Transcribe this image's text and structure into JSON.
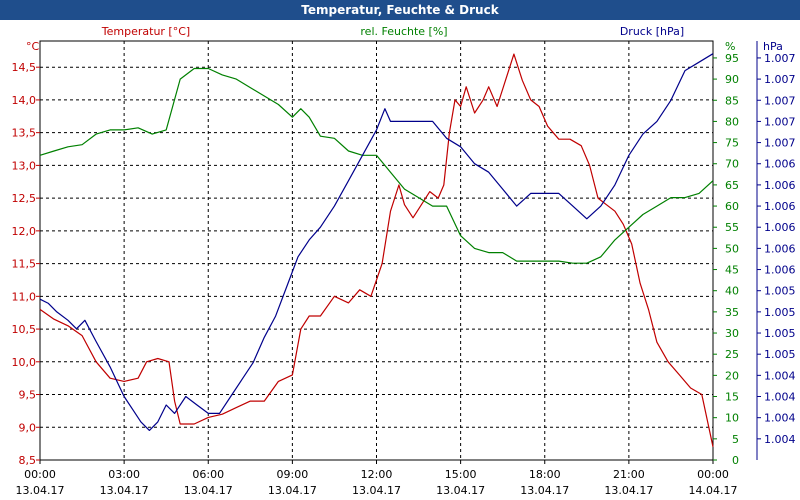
{
  "window": {
    "title": "Temperatur, Feuchte & Druck"
  },
  "colors": {
    "temperature": "#c00000",
    "humidity": "#008000",
    "pressure": "#00008b",
    "titlebar": "#1f4e8c",
    "grid": "#000000"
  },
  "chart_data": {
    "type": "line",
    "title": "Temperatur, Feuchte & Druck",
    "x": {
      "tick_labels": [
        {
          "time": "00:00",
          "date": "13.04.17"
        },
        {
          "time": "03:00",
          "date": "13.04.17"
        },
        {
          "time": "06:00",
          "date": "13.04.17"
        },
        {
          "time": "09:00",
          "date": "13.04.17"
        },
        {
          "time": "12:00",
          "date": "13.04.17"
        },
        {
          "time": "15:00",
          "date": "13.04.17"
        },
        {
          "time": "18:00",
          "date": "13.04.17"
        },
        {
          "time": "21:00",
          "date": "13.04.17"
        },
        {
          "time": "00:00",
          "date": "14.04.17"
        }
      ],
      "range_hours": [
        0,
        24
      ]
    },
    "axes": {
      "temperature": {
        "label": "Temperatur [°C]",
        "unit": "°C",
        "range": [
          8.5,
          14.9
        ],
        "ticks": [
          "8,5",
          "9,0",
          "9,5",
          "10,0",
          "10,5",
          "11,0",
          "11,5",
          "12,0",
          "12,5",
          "13,0",
          "13,5",
          "14,0",
          "14,5"
        ],
        "tick_values": [
          8.5,
          9.0,
          9.5,
          10.0,
          10.5,
          11.0,
          11.5,
          12.0,
          12.5,
          13.0,
          13.5,
          14.0,
          14.5
        ]
      },
      "humidity": {
        "label": "rel. Feuchte [%]",
        "unit": "%",
        "range": [
          0,
          99
        ],
        "ticks": [
          "0",
          "5",
          "10",
          "15",
          "20",
          "25",
          "30",
          "35",
          "40",
          "45",
          "50",
          "55",
          "60",
          "65",
          "70",
          "75",
          "80",
          "85",
          "90",
          "95"
        ],
        "tick_values": [
          0,
          5,
          10,
          15,
          20,
          25,
          30,
          35,
          40,
          45,
          50,
          55,
          60,
          65,
          70,
          75,
          80,
          85,
          90,
          95
        ]
      },
      "pressure": {
        "label": "Druck [hPa]",
        "unit": "hPa",
        "range": [
          0,
          99
        ],
        "ticks": [
          "1.004",
          "1.004",
          "1.004",
          "1.004",
          "1.005",
          "1.005",
          "1.005",
          "1.005",
          "1.006",
          "1.006",
          "1.006",
          "1.006",
          "1.006",
          "1.006",
          "1.007",
          "1.007",
          "1.007",
          "1.007",
          "1.007"
        ],
        "tick_values": [
          5,
          10,
          15,
          20,
          25,
          30,
          35,
          40,
          45,
          50,
          55,
          60,
          65,
          70,
          75,
          80,
          85,
          90,
          95
        ]
      }
    },
    "series": [
      {
        "name": "Temperatur",
        "axis": "temperature",
        "color": "#c00000",
        "points": [
          [
            0,
            10.8
          ],
          [
            0.5,
            10.65
          ],
          [
            1,
            10.55
          ],
          [
            1.5,
            10.4
          ],
          [
            2,
            10.0
          ],
          [
            2.5,
            9.75
          ],
          [
            3,
            9.7
          ],
          [
            3.5,
            9.75
          ],
          [
            3.8,
            10.0
          ],
          [
            4.2,
            10.05
          ],
          [
            4.6,
            10.0
          ],
          [
            4.8,
            9.4
          ],
          [
            5.0,
            9.05
          ],
          [
            5.5,
            9.05
          ],
          [
            6.0,
            9.15
          ],
          [
            6.5,
            9.2
          ],
          [
            7,
            9.3
          ],
          [
            7.5,
            9.4
          ],
          [
            8.0,
            9.4
          ],
          [
            8.5,
            9.7
          ],
          [
            9.0,
            9.8
          ],
          [
            9.3,
            10.5
          ],
          [
            9.6,
            10.7
          ],
          [
            10.0,
            10.7
          ],
          [
            10.5,
            11.0
          ],
          [
            11.0,
            10.9
          ],
          [
            11.4,
            11.1
          ],
          [
            11.8,
            11.0
          ],
          [
            12.2,
            11.5
          ],
          [
            12.5,
            12.3
          ],
          [
            12.8,
            12.7
          ],
          [
            13.0,
            12.4
          ],
          [
            13.3,
            12.2
          ],
          [
            13.6,
            12.4
          ],
          [
            13.9,
            12.6
          ],
          [
            14.2,
            12.5
          ],
          [
            14.4,
            12.7
          ],
          [
            14.6,
            13.5
          ],
          [
            14.8,
            14.0
          ],
          [
            15.0,
            13.9
          ],
          [
            15.2,
            14.2
          ],
          [
            15.5,
            13.8
          ],
          [
            15.8,
            14.0
          ],
          [
            16.0,
            14.2
          ],
          [
            16.3,
            13.9
          ],
          [
            16.6,
            14.3
          ],
          [
            16.9,
            14.7
          ],
          [
            17.2,
            14.3
          ],
          [
            17.5,
            14.0
          ],
          [
            17.8,
            13.9
          ],
          [
            18.1,
            13.6
          ],
          [
            18.5,
            13.4
          ],
          [
            18.9,
            13.4
          ],
          [
            19.3,
            13.3
          ],
          [
            19.6,
            13.0
          ],
          [
            19.9,
            12.5
          ],
          [
            20.2,
            12.4
          ],
          [
            20.5,
            12.3
          ],
          [
            20.8,
            12.1
          ],
          [
            21.1,
            11.8
          ],
          [
            21.4,
            11.2
          ],
          [
            21.7,
            10.8
          ],
          [
            22.0,
            10.3
          ],
          [
            22.4,
            10.0
          ],
          [
            22.8,
            9.8
          ],
          [
            23.2,
            9.6
          ],
          [
            23.6,
            9.5
          ],
          [
            24.0,
            8.7
          ]
        ]
      },
      {
        "name": "rel. Feuchte",
        "axis": "humidity",
        "color": "#008000",
        "points": [
          [
            0,
            72
          ],
          [
            0.5,
            73
          ],
          [
            1,
            74
          ],
          [
            1.5,
            74.5
          ],
          [
            2,
            77
          ],
          [
            2.5,
            78
          ],
          [
            3,
            78
          ],
          [
            3.5,
            78.5
          ],
          [
            4,
            77
          ],
          [
            4.5,
            78
          ],
          [
            5.0,
            90
          ],
          [
            5.5,
            92.5
          ],
          [
            6,
            92.5
          ],
          [
            6.5,
            91
          ],
          [
            7,
            90
          ],
          [
            7.5,
            88
          ],
          [
            8,
            86
          ],
          [
            8.5,
            84
          ],
          [
            9.0,
            81
          ],
          [
            9.3,
            83
          ],
          [
            9.6,
            81
          ],
          [
            10.0,
            76.5
          ],
          [
            10.5,
            76
          ],
          [
            11.0,
            73
          ],
          [
            11.5,
            72
          ],
          [
            12.0,
            72
          ],
          [
            12.5,
            68
          ],
          [
            13.0,
            64
          ],
          [
            13.5,
            62
          ],
          [
            14.0,
            60
          ],
          [
            14.5,
            60
          ],
          [
            15.0,
            53
          ],
          [
            15.5,
            50
          ],
          [
            16.0,
            49
          ],
          [
            16.5,
            49
          ],
          [
            17.0,
            47
          ],
          [
            17.5,
            47
          ],
          [
            18.0,
            47
          ],
          [
            18.5,
            47
          ],
          [
            19.0,
            46.5
          ],
          [
            19.5,
            46.5
          ],
          [
            20.0,
            48
          ],
          [
            20.5,
            52
          ],
          [
            21.0,
            55
          ],
          [
            21.5,
            58
          ],
          [
            22.0,
            60
          ],
          [
            22.5,
            62
          ],
          [
            23.0,
            62
          ],
          [
            23.5,
            63
          ],
          [
            24.0,
            66
          ]
        ]
      },
      {
        "name": "Druck",
        "axis": "pressure",
        "color": "#00008b",
        "points": [
          [
            0,
            38
          ],
          [
            0.3,
            37
          ],
          [
            0.6,
            35
          ],
          [
            1.0,
            33
          ],
          [
            1.3,
            31
          ],
          [
            1.6,
            33
          ],
          [
            2.0,
            28
          ],
          [
            2.5,
            22
          ],
          [
            3.0,
            15
          ],
          [
            3.3,
            12
          ],
          [
            3.6,
            9
          ],
          [
            3.9,
            7
          ],
          [
            4.2,
            9
          ],
          [
            4.5,
            13
          ],
          [
            4.8,
            11
          ],
          [
            5.2,
            15
          ],
          [
            5.6,
            13
          ],
          [
            6.0,
            11
          ],
          [
            6.4,
            11
          ],
          [
            6.8,
            15
          ],
          [
            7.2,
            19
          ],
          [
            7.6,
            23
          ],
          [
            8.0,
            29
          ],
          [
            8.4,
            34
          ],
          [
            8.8,
            41
          ],
          [
            9.2,
            48
          ],
          [
            9.6,
            52
          ],
          [
            10.0,
            55
          ],
          [
            10.5,
            60
          ],
          [
            11.0,
            66
          ],
          [
            11.5,
            72
          ],
          [
            12.0,
            78
          ],
          [
            12.3,
            83
          ],
          [
            12.5,
            80
          ],
          [
            13.0,
            80
          ],
          [
            13.5,
            80
          ],
          [
            14.0,
            80
          ],
          [
            14.5,
            76
          ],
          [
            15.0,
            74
          ],
          [
            15.5,
            70
          ],
          [
            16.0,
            68
          ],
          [
            16.5,
            64
          ],
          [
            17.0,
            60
          ],
          [
            17.5,
            63
          ],
          [
            18.0,
            63
          ],
          [
            18.5,
            63
          ],
          [
            19.0,
            60
          ],
          [
            19.5,
            57
          ],
          [
            20.0,
            60
          ],
          [
            20.5,
            65
          ],
          [
            21.0,
            72
          ],
          [
            21.5,
            77
          ],
          [
            22.0,
            80
          ],
          [
            22.5,
            85
          ],
          [
            23.0,
            92
          ],
          [
            23.5,
            94
          ],
          [
            24.0,
            96
          ]
        ]
      }
    ]
  }
}
